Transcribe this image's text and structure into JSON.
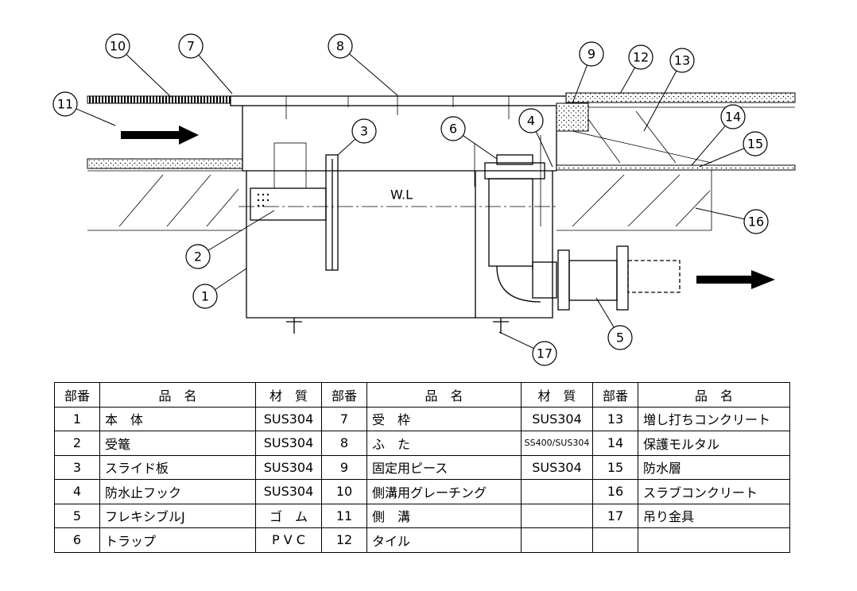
{
  "callouts": [
    "1",
    "2",
    "3",
    "4",
    "5",
    "6",
    "7",
    "8",
    "9",
    "10",
    "11",
    "12",
    "13",
    "14",
    "15",
    "16",
    "17"
  ],
  "water_level": "W.L",
  "table": {
    "header": [
      "部番",
      "品　名",
      "材　質",
      "部番",
      "品　名",
      "材　質",
      "部番",
      "品　名"
    ],
    "rows": [
      [
        "1",
        "本　体",
        "SUS304",
        "7",
        "受　枠",
        "SUS304",
        "13",
        "増し打ちコンクリート"
      ],
      [
        "2",
        "受篭",
        "SUS304",
        "8",
        "ふ　た",
        "SS400/SUS304",
        "14",
        "保護モルタル"
      ],
      [
        "3",
        "スライド板",
        "SUS304",
        "9",
        "固定用ピース",
        "SUS304",
        "15",
        "防水層"
      ],
      [
        "4",
        "防水止フック",
        "SUS304",
        "10",
        "側溝用グレーチング",
        null,
        "16",
        "スラブコンクリート"
      ],
      [
        "5",
        "フレキシブルJ",
        "ゴ　ム",
        "11",
        "側　溝",
        null,
        "17",
        "吊り金具"
      ],
      [
        "6",
        "トラップ",
        "P V C",
        "12",
        "タイル",
        null,
        null,
        null
      ]
    ]
  }
}
